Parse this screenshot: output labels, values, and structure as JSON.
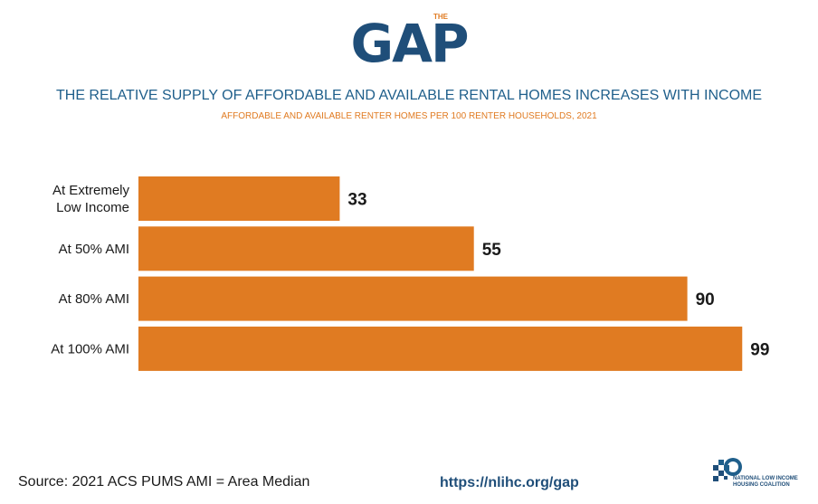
{
  "logo": {
    "small_text": "THE",
    "main_text": "GAP"
  },
  "colors": {
    "bar": "#e07b22",
    "title": "#1f5f8b",
    "subtitle": "#e07b22",
    "logo": "#1f4e79",
    "value_label": "#1a1a1a"
  },
  "chart_data": {
    "type": "bar",
    "orientation": "horizontal",
    "title": "THE RELATIVE SUPPLY OF AFFORDABLE AND AVAILABLE RENTAL HOMES INCREASES WITH INCOME",
    "subtitle": "AFFORDABLE AND AVAILABLE RENTER HOMES PER 100 RENTER HOUSEHOLDS, 2021",
    "categories": [
      [
        "At Extremely",
        "Low Income"
      ],
      [
        "At 50% AMI"
      ],
      [
        "At 80% AMI"
      ],
      [
        "At 100% AMI"
      ]
    ],
    "values": [
      33,
      55,
      90,
      99
    ],
    "xlim": [
      0,
      100
    ],
    "grid": false,
    "legend": "none"
  },
  "footer": {
    "source": "Source: 2021 ACS PUMS AMI = Area Median",
    "url": "https://nlihc.org/gap",
    "org_name_line1": "NATIONAL LOW INCOME",
    "org_name_line2": "HOUSING COALITION"
  }
}
